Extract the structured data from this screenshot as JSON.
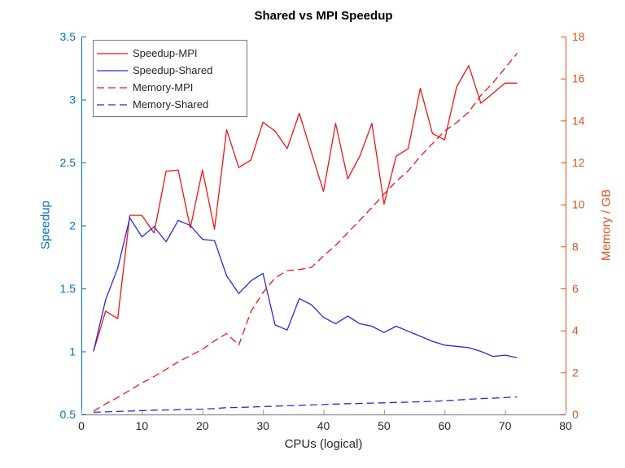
{
  "figure": {
    "kind": "matlab-style dual axis line plot",
    "background": "#ffffff"
  },
  "colors": {
    "left_axis": "#0072BD",
    "right_axis": "#D95319",
    "x_axis": "#9a9a9a",
    "x_tick_label": "#262626",
    "title": "#000000",
    "mpi_line": "#f01414",
    "shared_line": "#2828dc",
    "legend_border": "#787878"
  },
  "chart_data": {
    "type": "line",
    "title": "Shared vs MPI Speedup",
    "xlabel": "CPUs (logical)",
    "ylabel_left": "Speedup",
    "ylabel_right": "Memory / GB",
    "x_range": [
      0,
      80
    ],
    "x_ticks": [
      0,
      10,
      20,
      30,
      40,
      50,
      60,
      70,
      80
    ],
    "y_left_range": [
      0.5,
      3.5
    ],
    "y_left_ticks": [
      0.5,
      1,
      1.5,
      2,
      2.5,
      3,
      3.5
    ],
    "y_right_range": [
      0,
      18
    ],
    "y_right_ticks": [
      0,
      2,
      4,
      6,
      8,
      10,
      12,
      14,
      16,
      18
    ],
    "grid": false,
    "legend_position": "top-left-inside",
    "x": [
      2,
      4,
      6,
      8,
      10,
      12,
      14,
      16,
      18,
      20,
      22,
      24,
      26,
      28,
      30,
      32,
      34,
      36,
      38,
      40,
      42,
      44,
      46,
      48,
      50,
      52,
      54,
      56,
      58,
      60,
      62,
      64,
      66,
      68,
      70,
      72
    ],
    "series": [
      {
        "name": "Speedup-MPI",
        "axis": "left",
        "style": "solid",
        "color": "#f01414",
        "values": [
          1.0,
          1.32,
          1.26,
          2.08,
          2.08,
          1.94,
          2.43,
          2.44,
          1.98,
          2.44,
          1.97,
          2.76,
          2.46,
          2.52,
          2.82,
          2.75,
          2.61,
          2.89,
          2.58,
          2.27,
          2.81,
          2.37,
          2.55,
          2.81,
          2.17,
          2.55,
          2.61,
          3.09,
          2.73,
          2.68,
          3.1,
          3.27,
          2.97,
          3.05,
          3.13,
          3.13
        ]
      },
      {
        "name": "Speedup-Shared",
        "axis": "left",
        "style": "solid",
        "color": "#2828dc",
        "values": [
          1.0,
          1.41,
          1.66,
          2.06,
          1.91,
          1.99,
          1.87,
          2.04,
          2.0,
          1.89,
          1.88,
          1.6,
          1.46,
          1.56,
          1.62,
          1.21,
          1.17,
          1.42,
          1.37,
          1.27,
          1.22,
          1.28,
          1.22,
          1.2,
          1.15,
          1.2,
          1.16,
          1.12,
          1.08,
          1.05,
          1.04,
          1.03,
          1.0,
          0.96,
          0.97,
          0.95
        ]
      },
      {
        "name": "Memory-MPI",
        "axis": "right",
        "style": "dashed",
        "color": "#f01414",
        "values": [
          0.15,
          0.5,
          0.8,
          1.15,
          1.5,
          1.8,
          2.15,
          2.5,
          2.8,
          3.1,
          3.5,
          3.85,
          3.3,
          4.9,
          5.8,
          6.5,
          6.85,
          6.9,
          7.0,
          7.55,
          8.05,
          8.65,
          9.25,
          9.85,
          10.5,
          11.1,
          11.6,
          12.3,
          12.9,
          13.5,
          13.9,
          14.4,
          15.2,
          15.8,
          16.5,
          17.2
        ]
      },
      {
        "name": "Memory-Shared",
        "axis": "right",
        "style": "dashed",
        "color": "#2828dc",
        "values": [
          0.1,
          0.12,
          0.14,
          0.16,
          0.18,
          0.2,
          0.21,
          0.22,
          0.24,
          0.25,
          0.28,
          0.32,
          0.33,
          0.35,
          0.37,
          0.39,
          0.41,
          0.43,
          0.45,
          0.47,
          0.49,
          0.51,
          0.52,
          0.54,
          0.55,
          0.57,
          0.58,
          0.6,
          0.62,
          0.65,
          0.68,
          0.72,
          0.75,
          0.77,
          0.8,
          0.83
        ]
      }
    ]
  }
}
